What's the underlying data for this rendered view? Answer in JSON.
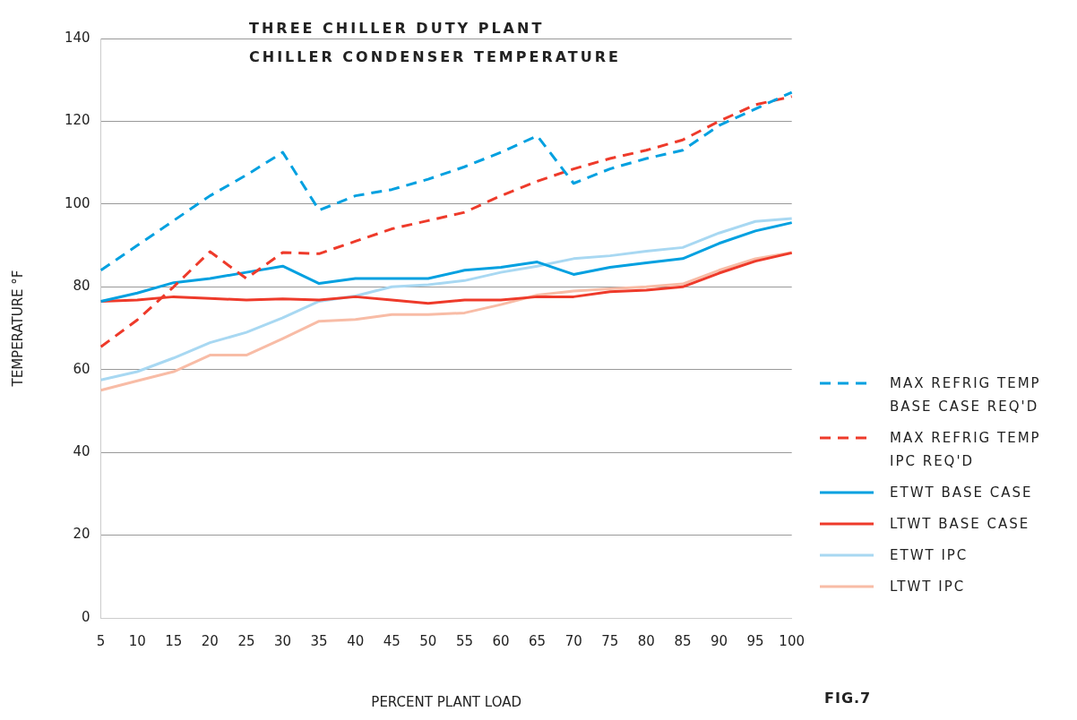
{
  "chart_data": {
    "type": "line",
    "title": "THREE CHILLER DUTY PLANT",
    "subtitle": "CHILLER CONDENSER TEMPERATURE",
    "xlabel": "PERCENT PLANT LOAD",
    "ylabel": "TEMPERATURE °F",
    "categories": [
      "5",
      "10",
      "15",
      "20",
      "25",
      "30",
      "35",
      "40",
      "45",
      "50",
      "55",
      "60",
      "65",
      "70",
      "75",
      "80",
      "85",
      "90",
      "95",
      "100"
    ],
    "series": [
      {
        "name": "MAX REFRIG TEMP BASE CASE REQ'D",
        "color": "#00a0e0",
        "line_style": "dashed",
        "values": [
          84,
          90,
          96,
          102,
          107,
          112.5,
          98.5,
          102,
          103.5,
          106,
          109,
          112.5,
          116.5,
          105,
          108.5,
          111,
          113,
          119,
          123,
          127
        ]
      },
      {
        "name": "MAX REFRIG TEMP IPC REQ'D",
        "color": "#ee3a2a",
        "line_style": "dashed",
        "values": [
          65.5,
          72,
          80,
          88.5,
          82,
          88.3,
          88,
          91,
          94,
          96,
          98,
          102,
          105.5,
          108.5,
          111,
          113,
          115.5,
          120,
          124,
          126
        ]
      },
      {
        "name": "ETWT BASE CASE",
        "color": "#00a0e0",
        "line_style": "solid",
        "values": [
          76.5,
          78.5,
          81,
          82,
          83.5,
          85,
          80.8,
          82,
          82,
          82,
          84,
          84.7,
          86,
          83,
          84.7,
          85.8,
          86.8,
          90.5,
          93.5,
          95.5
        ]
      },
      {
        "name": "LTWT BASE CASE",
        "color": "#ee3a2a",
        "line_style": "solid",
        "values": [
          76.5,
          76.8,
          77.6,
          77.2,
          76.8,
          77.1,
          76.8,
          77.6,
          76.8,
          76,
          76.8,
          76.8,
          77.6,
          77.6,
          78.8,
          79.2,
          80,
          83.3,
          86.2,
          88.2
        ]
      },
      {
        "name": "ETWT IPC",
        "color": "#a8d8f2",
        "line_style": "solid",
        "values": [
          57.5,
          59.5,
          62.8,
          66.5,
          69,
          72.5,
          76.5,
          77.8,
          80,
          80.5,
          81.5,
          83.5,
          85,
          86.8,
          87.5,
          88.6,
          89.5,
          93,
          95.8,
          96.5
        ]
      },
      {
        "name": "LTWT IPC",
        "color": "#f8bca6",
        "line_style": "solid",
        "values": [
          55,
          57.3,
          59.5,
          63.5,
          63.5,
          67.5,
          71.7,
          72.1,
          73.3,
          73.3,
          73.7,
          75.7,
          78,
          79,
          79.5,
          80,
          80.7,
          84,
          86.8,
          88.3
        ]
      }
    ],
    "ylim": [
      0,
      140
    ],
    "yticks": [
      0,
      20,
      40,
      60,
      80,
      100,
      120,
      140
    ],
    "grid": "y",
    "legend": "right",
    "marker": "none",
    "annotations": [
      "FIG.7"
    ]
  }
}
